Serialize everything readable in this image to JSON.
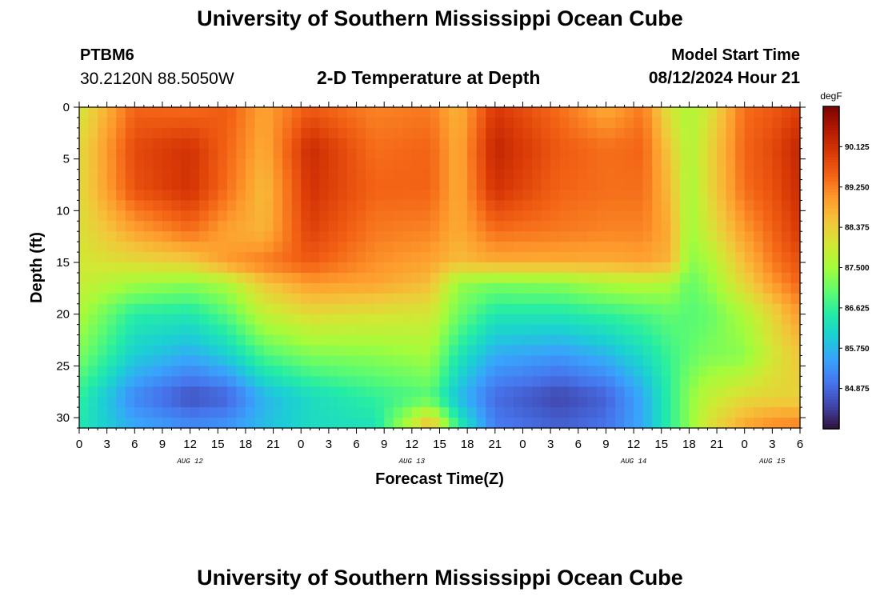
{
  "header": {
    "title": "University of Southern Mississippi Ocean Cube",
    "station": "PTBM6",
    "coordinates": "30.2120N  88.5050W",
    "subtitle": "2-D Temperature at Depth",
    "model_start_label": "Model Start Time",
    "model_start_value": "08/12/2024 Hour 21"
  },
  "footer": {
    "title": "University of Southern Mississippi Ocean Cube"
  },
  "colors": {
    "colormap": [
      "#30123b",
      "#4145ab",
      "#4675ed",
      "#39a2fc",
      "#1bcfd4",
      "#24eca6",
      "#61fc6c",
      "#a4fc3b",
      "#d1e834",
      "#f3c63a",
      "#fe9b2d",
      "#f36315",
      "#d93806",
      "#b11901",
      "#7a0402"
    ]
  },
  "chart_data": {
    "type": "heatmap",
    "xlabel": "Forecast Time(Z)",
    "ylabel": "Depth (ft)",
    "x_tick_labels": [
      "0",
      "3",
      "6",
      "9",
      "12",
      "15",
      "18",
      "21",
      "0",
      "3",
      "6",
      "9",
      "12",
      "15",
      "18",
      "21",
      "0",
      "3",
      "6",
      "9",
      "12",
      "15",
      "18",
      "21",
      "0",
      "3",
      "6"
    ],
    "date_labels": [
      {
        "label": "AUG 12",
        "hour": 12
      },
      {
        "label": "AUG 13",
        "hour": 36
      },
      {
        "label": "AUG 14",
        "hour": 60
      },
      {
        "label": "AUG 15",
        "hour": 75
      }
    ],
    "x_range_hours": [
      0,
      78
    ],
    "y_ticks": [
      0,
      5,
      10,
      15,
      20,
      25,
      30
    ],
    "y_range": [
      0,
      31
    ],
    "colorbar": {
      "unit": "degF",
      "range": [
        84.0,
        91.0
      ],
      "labels": [
        "90.125",
        "89.250",
        "88.375",
        "87.500",
        "86.625",
        "85.750",
        "84.875"
      ]
    },
    "grid_hours": [
      0,
      6,
      12,
      16,
      20,
      25,
      32,
      38,
      41,
      45,
      52,
      57,
      61,
      64,
      66,
      68,
      72,
      75,
      78
    ],
    "grid_depths": [
      0,
      4,
      8,
      12,
      15,
      17,
      20,
      24,
      28,
      31
    ],
    "temperature_grid": [
      [
        88.0,
        89.5,
        89.4,
        89.6,
        88.9,
        89.6,
        89.2,
        89.3,
        88.7,
        90.0,
        89.4,
        88.8,
        89.3,
        88.0,
        87.6,
        88.0,
        89.4,
        89.6,
        89.9
      ],
      [
        88.2,
        89.8,
        90.1,
        89.5,
        88.8,
        90.2,
        89.4,
        89.5,
        88.8,
        90.3,
        89.6,
        89.4,
        89.5,
        88.4,
        87.6,
        88.2,
        89.5,
        89.8,
        90.3
      ],
      [
        88.2,
        89.7,
        90.1,
        89.4,
        88.6,
        90.1,
        89.5,
        89.5,
        88.8,
        90.1,
        89.5,
        89.4,
        89.4,
        88.6,
        87.5,
        88.2,
        89.4,
        89.7,
        90.2
      ],
      [
        88.1,
        88.9,
        89.4,
        88.9,
        88.7,
        89.9,
        89.3,
        89.2,
        88.8,
        89.4,
        89.3,
        89.2,
        89.2,
        88.8,
        87.4,
        88.0,
        89.0,
        89.5,
        90.0
      ],
      [
        88.0,
        88.2,
        88.4,
        89.0,
        89.3,
        89.6,
        89.1,
        88.9,
        88.6,
        88.8,
        88.8,
        88.8,
        88.9,
        88.7,
        87.3,
        87.5,
        88.6,
        89.3,
        89.7
      ],
      [
        87.9,
        87.5,
        87.3,
        87.6,
        88.5,
        89.0,
        88.9,
        88.6,
        87.4,
        87.2,
        87.3,
        87.6,
        87.7,
        87.6,
        87.0,
        87.3,
        88.3,
        89.0,
        89.5
      ],
      [
        87.6,
        86.5,
        86.4,
        86.9,
        87.8,
        88.2,
        88.1,
        88.0,
        87.1,
        86.4,
        86.4,
        86.6,
        86.8,
        87.0,
        86.9,
        87.0,
        87.6,
        88.3,
        89.0
      ],
      [
        87.2,
        86.0,
        85.6,
        86.0,
        86.8,
        87.2,
        87.3,
        87.5,
        86.4,
        85.6,
        85.4,
        85.7,
        86.2,
        86.7,
        87.0,
        87.2,
        87.3,
        88.0,
        88.5
      ],
      [
        86.6,
        85.2,
        84.6,
        84.8,
        85.7,
        86.2,
        86.6,
        86.9,
        85.8,
        84.9,
        84.5,
        84.8,
        85.6,
        86.6,
        87.3,
        87.8,
        88.2,
        88.3,
        88.3
      ],
      [
        86.4,
        85.6,
        85.3,
        85.4,
        85.8,
        86.2,
        86.3,
        88.8,
        86.6,
        85.1,
        84.8,
        85.0,
        85.6,
        86.6,
        87.3,
        88.1,
        88.9,
        89.2,
        89.3
      ]
    ]
  }
}
